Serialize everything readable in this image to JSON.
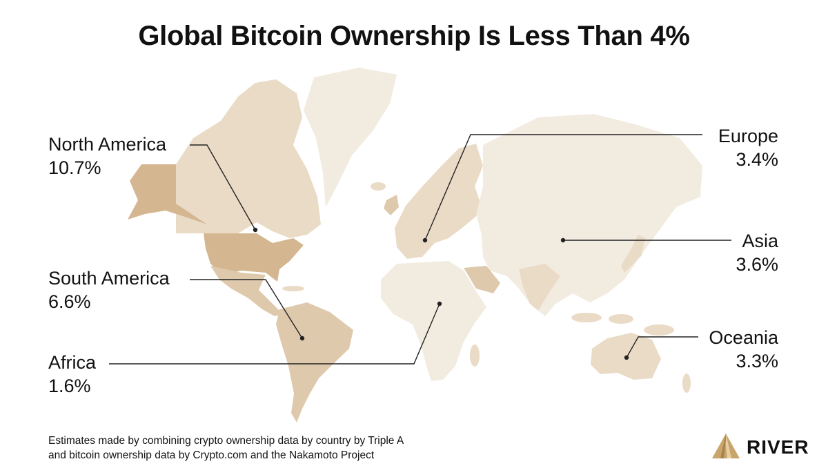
{
  "title": "Global Bitcoin Ownership Is Less Than 4%",
  "colors": {
    "land_base": "#f2ebe0",
    "low": "#eadbc6",
    "mid": "#dfc9ad",
    "high": "#d4b791",
    "line": "#222222",
    "brand_gold": "#c9a46b"
  },
  "regions": [
    {
      "name": "North America",
      "value": "10.7%",
      "ownership_pct": 10.7
    },
    {
      "name": "South America",
      "value": "6.6%",
      "ownership_pct": 6.6
    },
    {
      "name": "Africa",
      "value": "1.6%",
      "ownership_pct": 1.6
    },
    {
      "name": "Europe",
      "value": "3.4%",
      "ownership_pct": 3.4
    },
    {
      "name": "Asia",
      "value": "3.6%",
      "ownership_pct": 3.6
    },
    {
      "name": "Oceania",
      "value": "3.3%",
      "ownership_pct": 3.3
    }
  ],
  "footnote": {
    "line1": "Estimates made by combining crypto ownership data by country by Triple A",
    "line2": "and bitcoin ownership data by Crypto.com and the Nakamoto Project"
  },
  "brand": {
    "name": "RIVER",
    "icon": "river-mountain-logo-icon"
  }
}
